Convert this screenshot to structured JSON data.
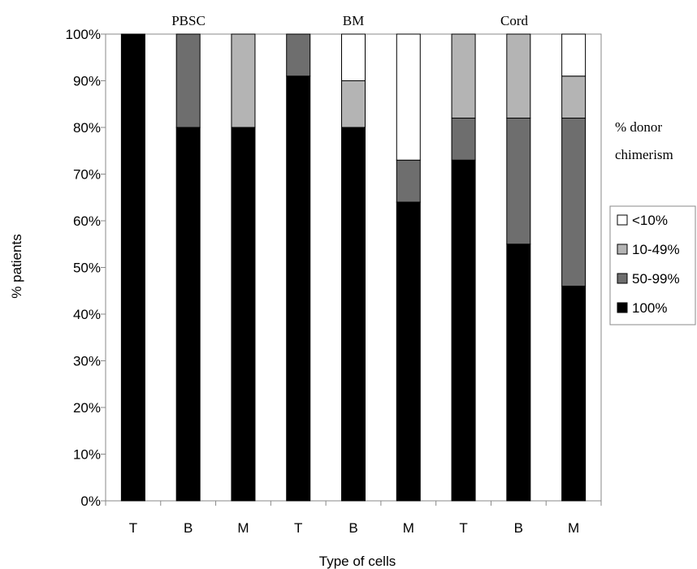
{
  "chart_data": {
    "type": "bar",
    "stacked": true,
    "normalized_percent": true,
    "xlabel": "Type of cells",
    "ylabel": "% patients",
    "ylim": [
      0,
      100
    ],
    "yticks": [
      "0%",
      "10%",
      "20%",
      "30%",
      "40%",
      "50%",
      "60%",
      "70%",
      "80%",
      "90%",
      "100%"
    ],
    "groups": [
      {
        "name": "PBSC",
        "categories": [
          "T",
          "B",
          "M"
        ]
      },
      {
        "name": "BM",
        "categories": [
          "T",
          "B",
          "M"
        ]
      },
      {
        "name": "Cord",
        "categories": [
          "T",
          "B",
          "M"
        ]
      }
    ],
    "categories": [
      "T",
      "B",
      "M",
      "T",
      "B",
      "M",
      "T",
      "B",
      "M"
    ],
    "series": [
      {
        "name": "100%",
        "color": "#000000",
        "values": [
          100,
          80,
          80,
          91,
          80,
          64,
          73,
          55,
          46
        ]
      },
      {
        "name": "50-99%",
        "color": "#6e6e6e",
        "values": [
          0,
          20,
          0,
          9,
          0,
          9,
          9,
          27,
          36
        ]
      },
      {
        "name": "10-49%",
        "color": "#b4b4b4",
        "values": [
          0,
          0,
          20,
          0,
          10,
          0,
          18,
          18,
          9
        ]
      },
      {
        "name": "<10%",
        "color": "#ffffff",
        "values": [
          0,
          0,
          0,
          0,
          10,
          27,
          0,
          0,
          9
        ]
      }
    ],
    "legend": {
      "title_lines": [
        "% donor",
        "chimerism"
      ],
      "position": "right",
      "entries": [
        "<10%",
        "10-49%",
        "50-99%",
        "100%"
      ]
    },
    "grid": false
  }
}
